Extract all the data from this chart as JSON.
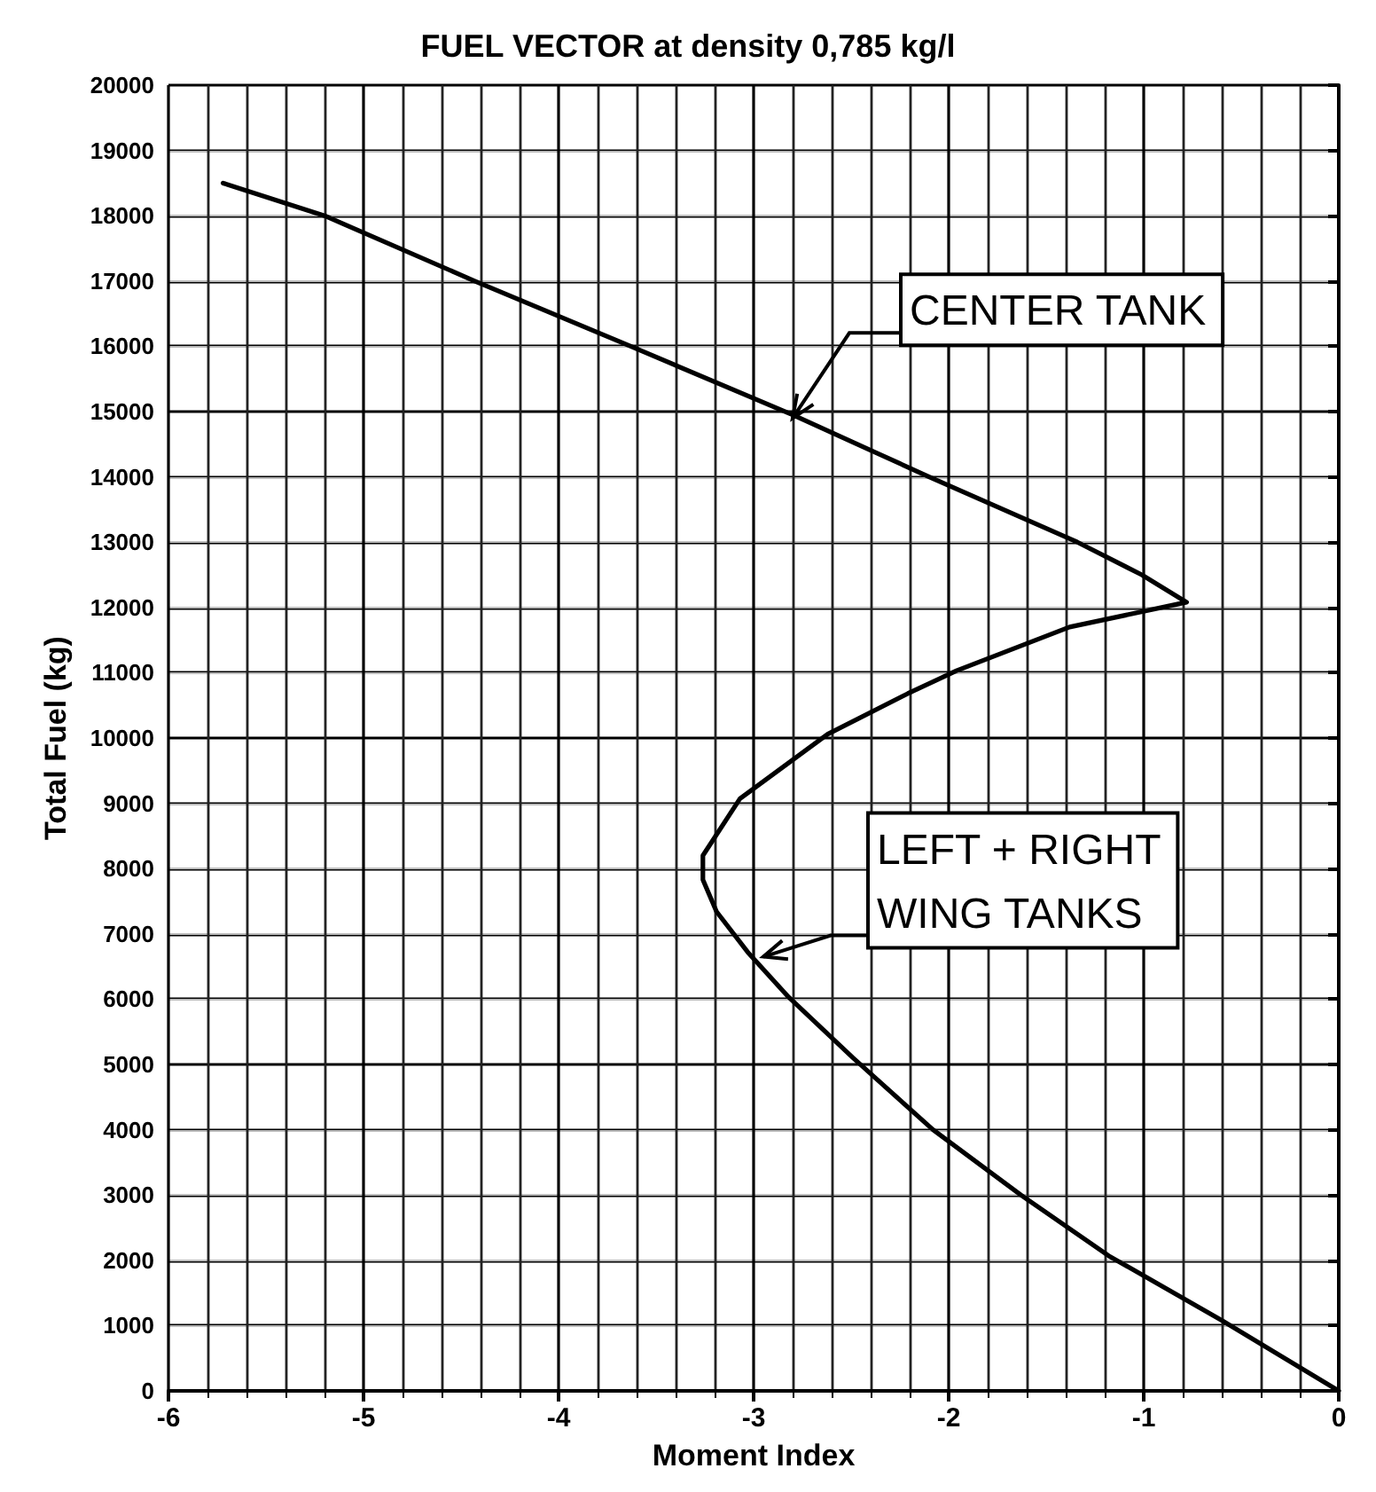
{
  "chart_data": {
    "type": "line",
    "title": "FUEL VECTOR at density 0,785 kg/l",
    "xlabel": "Moment Index",
    "ylabel": "Total Fuel (kg)",
    "xlim": [
      -6,
      0
    ],
    "xticks": [
      -6,
      -5,
      -4,
      -3,
      -2,
      -1,
      0
    ],
    "ylim": [
      0,
      20000
    ],
    "yticks": [
      0,
      1000,
      2000,
      3000,
      4000,
      5000,
      6000,
      7000,
      8000,
      9000,
      10000,
      11000,
      12000,
      13000,
      14000,
      15000,
      16000,
      17000,
      18000,
      19000,
      20000
    ],
    "grid": true,
    "marker": "none",
    "line_style": "solid",
    "series": [
      {
        "color": "#000000",
        "x": [
          -5.72,
          -5.2,
          -4.43,
          -3.63,
          -2.8,
          -2.1,
          -1.34,
          -1.01,
          -0.78,
          -1.38,
          -1.96,
          -2.21,
          -2.62,
          -3.07,
          -3.26,
          -3.26,
          -3.19,
          -3.03,
          -2.82,
          -2.49,
          -2.08,
          -1.63,
          -1.18,
          -0.6,
          0
        ],
        "values": [
          18500,
          18000,
          17000,
          16000,
          14950,
          14000,
          13000,
          12500,
          12080,
          11700,
          11030,
          10680,
          10060,
          9070,
          8200,
          7830,
          7340,
          6720,
          6030,
          5100,
          4000,
          3000,
          2070,
          1080,
          0
        ]
      }
    ],
    "annotations": [
      {
        "text": "CENTER TANK",
        "x": -2.8,
        "y": 14900
      },
      {
        "text": "LEFT + RIGHT\nWING TANKS",
        "x": -2.95,
        "y": 6650
      }
    ]
  }
}
